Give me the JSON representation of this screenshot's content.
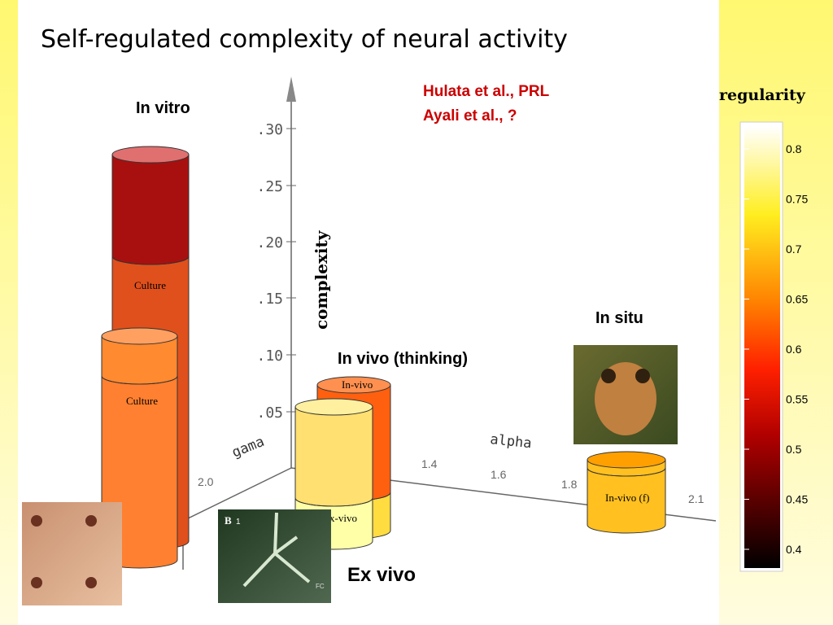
{
  "title": "Self-regulated complexity of neural activity",
  "references": [
    "Hulata et al., PRL",
    "Ayali et al., ?"
  ],
  "groups": {
    "in_vitro": "In vitro",
    "in_vivo": "In vivo (thinking)",
    "in_situ": "In situ",
    "ex_vivo": "Ex vivo"
  },
  "cylinder_labels": [
    "Culture",
    "Culture",
    "In-vivo",
    "x-vivo",
    "In-vivo (f)"
  ],
  "axes": {
    "z_label": "complexity",
    "z_ticks": [
      ".30",
      ".25",
      ".20",
      ".15",
      ".10",
      ".05"
    ],
    "gama_label": "gama",
    "gama_tick": "2.0",
    "alpha_label": "alpha",
    "alpha_ticks": [
      "1.4",
      "1.6",
      "1.8",
      "2.1"
    ]
  },
  "colorbar": {
    "label": "regularity",
    "ticks": [
      0.8,
      0.75,
      0.7,
      0.65,
      0.6,
      0.55,
      0.5,
      0.45,
      0.4
    ]
  },
  "image_text": [
    "B",
    "1",
    "FC"
  ]
}
